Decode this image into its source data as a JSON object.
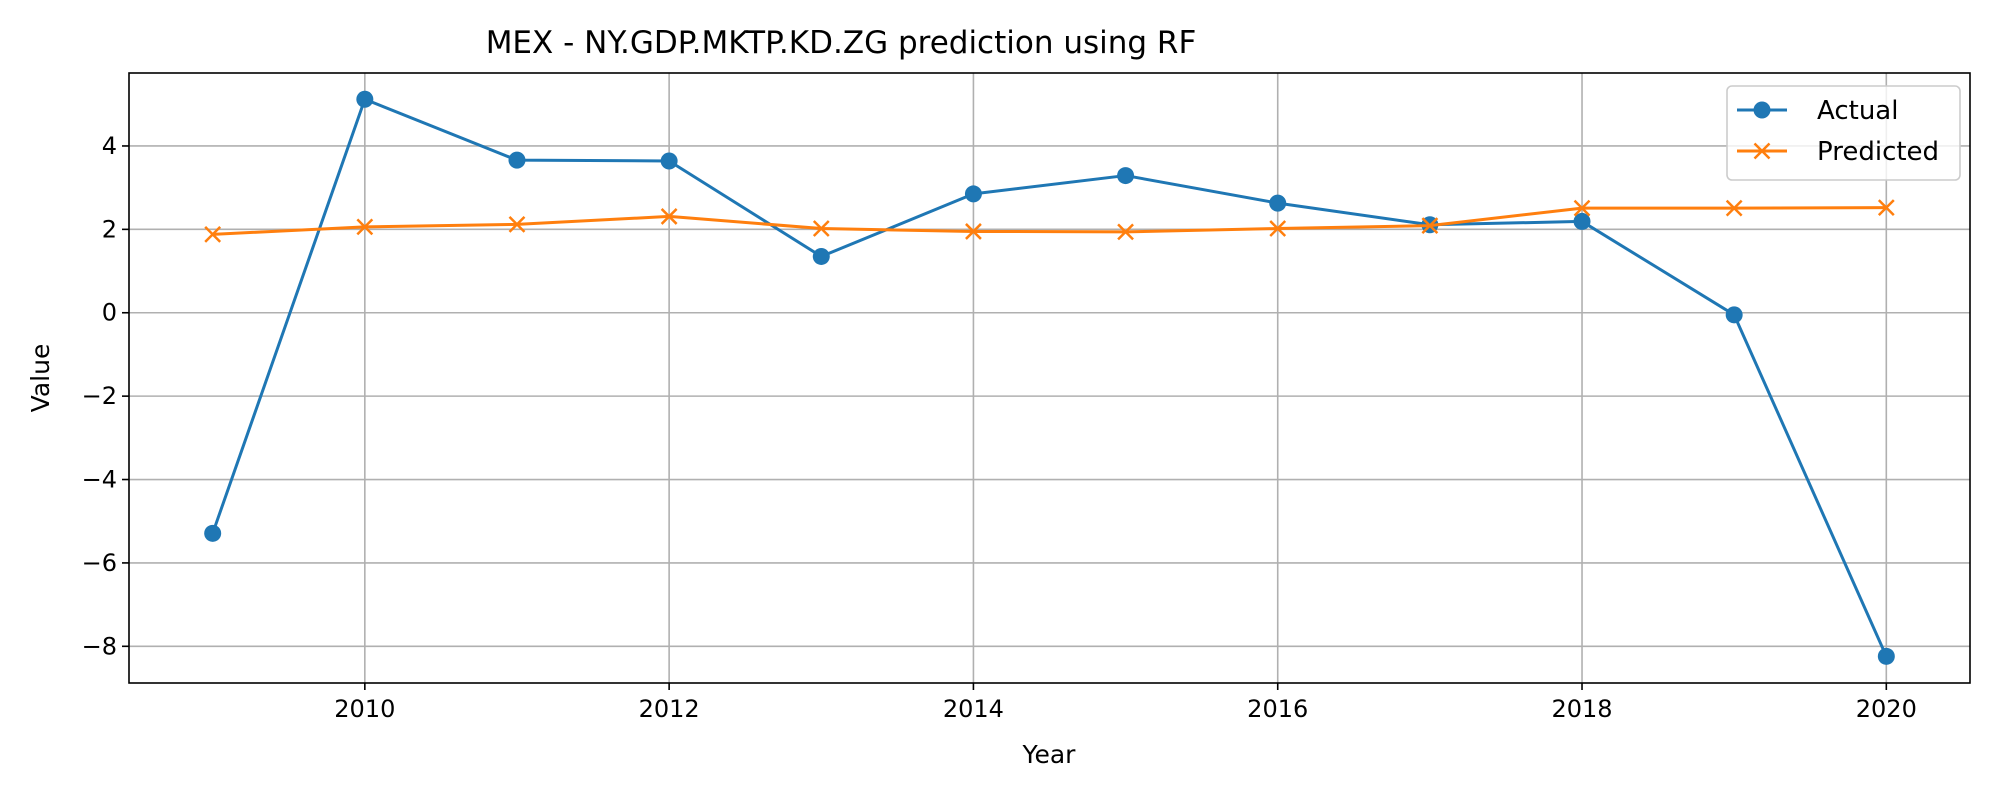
{
  "chart_data": {
    "type": "line",
    "title": "MEX - NY.GDP.MKTP.KD.ZG prediction using RF",
    "xlabel": "Year",
    "ylabel": "Value",
    "x": [
      2009,
      2010,
      2011,
      2012,
      2013,
      2014,
      2015,
      2016,
      2017,
      2018,
      2019,
      2020
    ],
    "xlim": [
      2008.45,
      2020.55
    ],
    "ylim": [
      -8.88,
      5.75
    ],
    "xticks": [
      2010,
      2012,
      2014,
      2016,
      2018,
      2020
    ],
    "yticks": [
      4,
      2,
      0,
      -2,
      -4,
      -6,
      -8
    ],
    "ytick_labels": [
      "4",
      "2",
      "0",
      "−2",
      "−4",
      "−6",
      "−8"
    ],
    "grid": true,
    "legend_position": "top-right",
    "series": [
      {
        "name": "Actual",
        "color": "#1f77b4",
        "marker": "circle",
        "values": [
          -5.29,
          5.12,
          3.66,
          3.64,
          1.35,
          2.85,
          3.29,
          2.63,
          2.11,
          2.19,
          -0.05,
          -8.24
        ]
      },
      {
        "name": "Predicted",
        "color": "#ff7f0e",
        "marker": "x",
        "values": [
          1.88,
          2.06,
          2.12,
          2.31,
          2.02,
          1.95,
          1.94,
          2.02,
          2.09,
          2.51,
          2.51,
          2.52
        ]
      }
    ]
  }
}
